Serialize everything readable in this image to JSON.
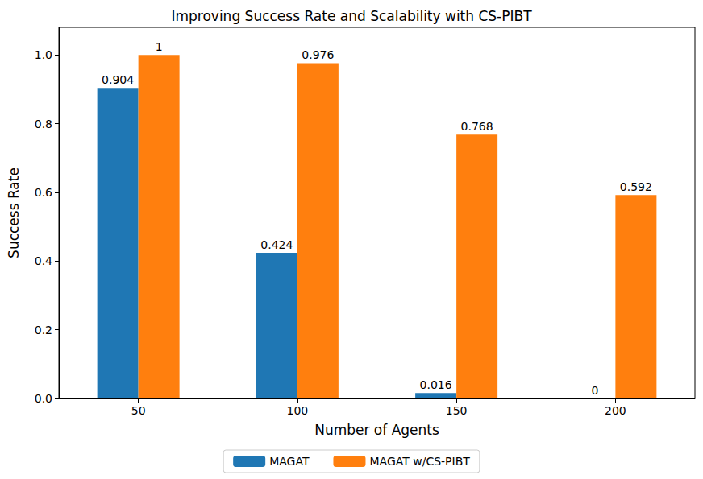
{
  "chart_data": {
    "type": "bar",
    "title": "Improving Success Rate and Scalability with CS-PIBT",
    "x_label": "Number of Agents",
    "y_label": "Success Rate",
    "categories": [
      "50",
      "100",
      "150",
      "200"
    ],
    "series": [
      {
        "name": "MAGAT",
        "color": "#1f77b4",
        "values": [
          0.904,
          0.424,
          0.016,
          0
        ]
      },
      {
        "name": "MAGAT w/CS-PIBT",
        "color": "#ff7f0e",
        "values": [
          1,
          0.976,
          0.768,
          0.592
        ]
      }
    ],
    "ylim": [
      0,
      1.08
    ],
    "yticks": [
      {
        "value": 0,
        "label": "0.0"
      },
      0.2,
      0.4,
      0.6,
      0.8,
      {
        "value": 1,
        "label": "1.0"
      }
    ],
    "grid": false,
    "legend": "bottom",
    "data_labels": true
  }
}
